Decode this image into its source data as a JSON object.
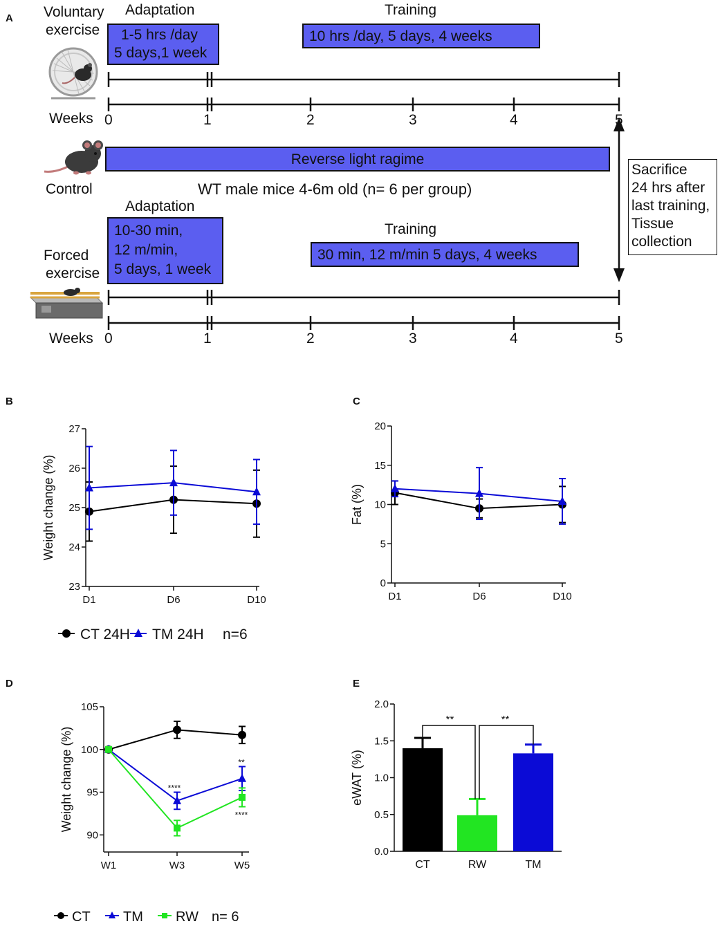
{
  "panelA": {
    "letter": "A",
    "voluntary": {
      "label_line1": "Voluntary",
      "label_line2": "exercise",
      "adaptation_title": "Adaptation",
      "adaptation_line1": "1-5 hrs /day",
      "adaptation_line2": "5 days,1 week",
      "training_title": "Training",
      "training_text": "10 hrs /day, 5 days, 4 weeks"
    },
    "weeks_label": "Weeks",
    "week_ticks": [
      "0",
      "1",
      "2",
      "3",
      "4",
      "5"
    ],
    "control": {
      "label": "Control",
      "bar_text": "Reverse light ragime",
      "mice_text": "WT male mice 4-6m old (n= 6 per group)"
    },
    "forced": {
      "label_line1": "Forced",
      "label_line2": "exercise",
      "adaptation_title": "Adaptation",
      "adaptation_line1": "10-30 min,",
      "adaptation_line2": "12 m/min,",
      "adaptation_line3": "5 days, 1 week",
      "training_title": "Training",
      "training_text": "30 min, 12 m/min 5 days, 4 weeks"
    },
    "sacrifice": {
      "line1": "Sacrifice",
      "line2": "24 hrs after",
      "line3": "last training,",
      "line4": "Tissue",
      "line5": "collection"
    }
  },
  "colors": {
    "box_fill": "#5b5ef0",
    "ct": "#000000",
    "tm": "#0b0bd6",
    "rw": "#22e522"
  },
  "chart_data": [
    {
      "panel": "B",
      "type": "line",
      "ylabel": "Weight change  (%)",
      "xlabel": "",
      "categories": [
        "D1",
        "D6",
        "D10"
      ],
      "ylim": [
        23,
        27
      ],
      "yticks": [
        "23",
        "24",
        "25",
        "26",
        "27"
      ],
      "series": [
        {
          "name": "CT 24H",
          "values": [
            24.9,
            25.2,
            25.1
          ],
          "err": [
            0.75,
            0.85,
            0.85
          ],
          "marker": "circle"
        },
        {
          "name": "TM 24H",
          "values": [
            25.5,
            25.63,
            25.4
          ],
          "err": [
            1.05,
            0.82,
            0.82
          ],
          "marker": "triangle"
        }
      ],
      "legend": {
        "items": [
          "CT 24H",
          "TM 24H"
        ],
        "note": "n=6",
        "position": "bottom"
      }
    },
    {
      "panel": "C",
      "type": "line",
      "ylabel": "Fat (%)",
      "xlabel": "",
      "categories": [
        "D1",
        "D6",
        "D10"
      ],
      "ylim": [
        0,
        20
      ],
      "yticks": [
        "0",
        "5",
        "10",
        "15",
        "20"
      ],
      "series": [
        {
          "name": "CT 24H",
          "values": [
            11.5,
            9.5,
            10.0
          ],
          "err": [
            1.5,
            1.2,
            2.3
          ],
          "marker": "circle"
        },
        {
          "name": "TM 24H",
          "values": [
            12.0,
            11.4,
            10.4
          ],
          "err": [
            1.0,
            3.3,
            2.9
          ],
          "marker": "triangle"
        }
      ]
    },
    {
      "panel": "D",
      "type": "line",
      "ylabel": "Weight change  (%)",
      "xlabel": "",
      "categories": [
        "W1",
        "W3",
        "W5"
      ],
      "ylim": [
        88,
        105
      ],
      "yticks": [
        "90",
        "95",
        "100",
        "105"
      ],
      "series": [
        {
          "name": "CT",
          "values": [
            100,
            102.3,
            101.7
          ],
          "err": [
            0,
            1.0,
            1.0
          ],
          "marker": "circle"
        },
        {
          "name": "TM",
          "values": [
            100,
            94.0,
            96.6
          ],
          "err": [
            0,
            1.0,
            1.4
          ],
          "marker": "triangle"
        },
        {
          "name": "RW",
          "values": [
            100,
            90.8,
            94.4
          ],
          "err": [
            0,
            0.9,
            1.1
          ],
          "marker": "square"
        }
      ],
      "annotations": [
        "****",
        "**",
        "****"
      ],
      "legend": {
        "items": [
          "CT",
          "TM",
          "RW"
        ],
        "note": "n= 6",
        "position": "bottom"
      }
    },
    {
      "panel": "E",
      "type": "bar",
      "ylabel": "eWAT (%)",
      "xlabel": "",
      "categories": [
        "CT",
        "RW",
        "TM"
      ],
      "values": [
        1.4,
        0.49,
        1.33
      ],
      "err": [
        0.14,
        0.22,
        0.12
      ],
      "ylim": [
        0,
        2.0
      ],
      "yticks": [
        "0.0",
        "0.5",
        "1.0",
        "1.5",
        "2.0"
      ],
      "significance": [
        {
          "between": [
            "CT",
            "RW"
          ],
          "label": "**"
        },
        {
          "between": [
            "RW",
            "TM"
          ],
          "label": "**"
        }
      ]
    }
  ]
}
